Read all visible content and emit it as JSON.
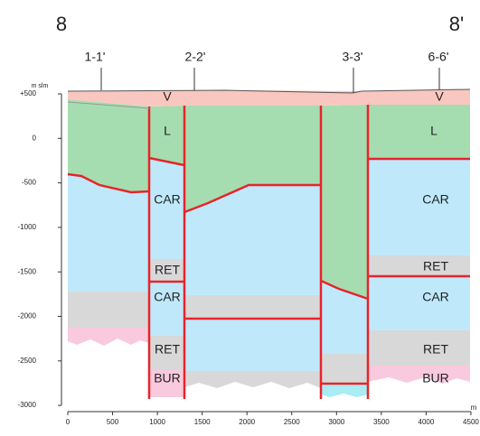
{
  "header": {
    "left": "8",
    "right": "8'"
  },
  "sections": [
    "1-1'",
    "2-2'",
    "3-3'",
    "6-6'"
  ],
  "y_axis": {
    "unit": "m slm",
    "ticks": [
      "+500",
      "0",
      "-500",
      "-1000",
      "-1500",
      "-2000",
      "-2500",
      "-3000"
    ]
  },
  "x_axis": {
    "unit": "m",
    "ticks": [
      "0",
      "500",
      "1000",
      "1500",
      "2000",
      "2500",
      "3000",
      "3500",
      "4000",
      "4500"
    ]
  },
  "layers": [
    "V",
    "V",
    "L",
    "L",
    "CAR",
    "CAR",
    "RET",
    "RET",
    "CAR",
    "CAR",
    "RET",
    "RET",
    "BUR",
    "BUR"
  ]
}
